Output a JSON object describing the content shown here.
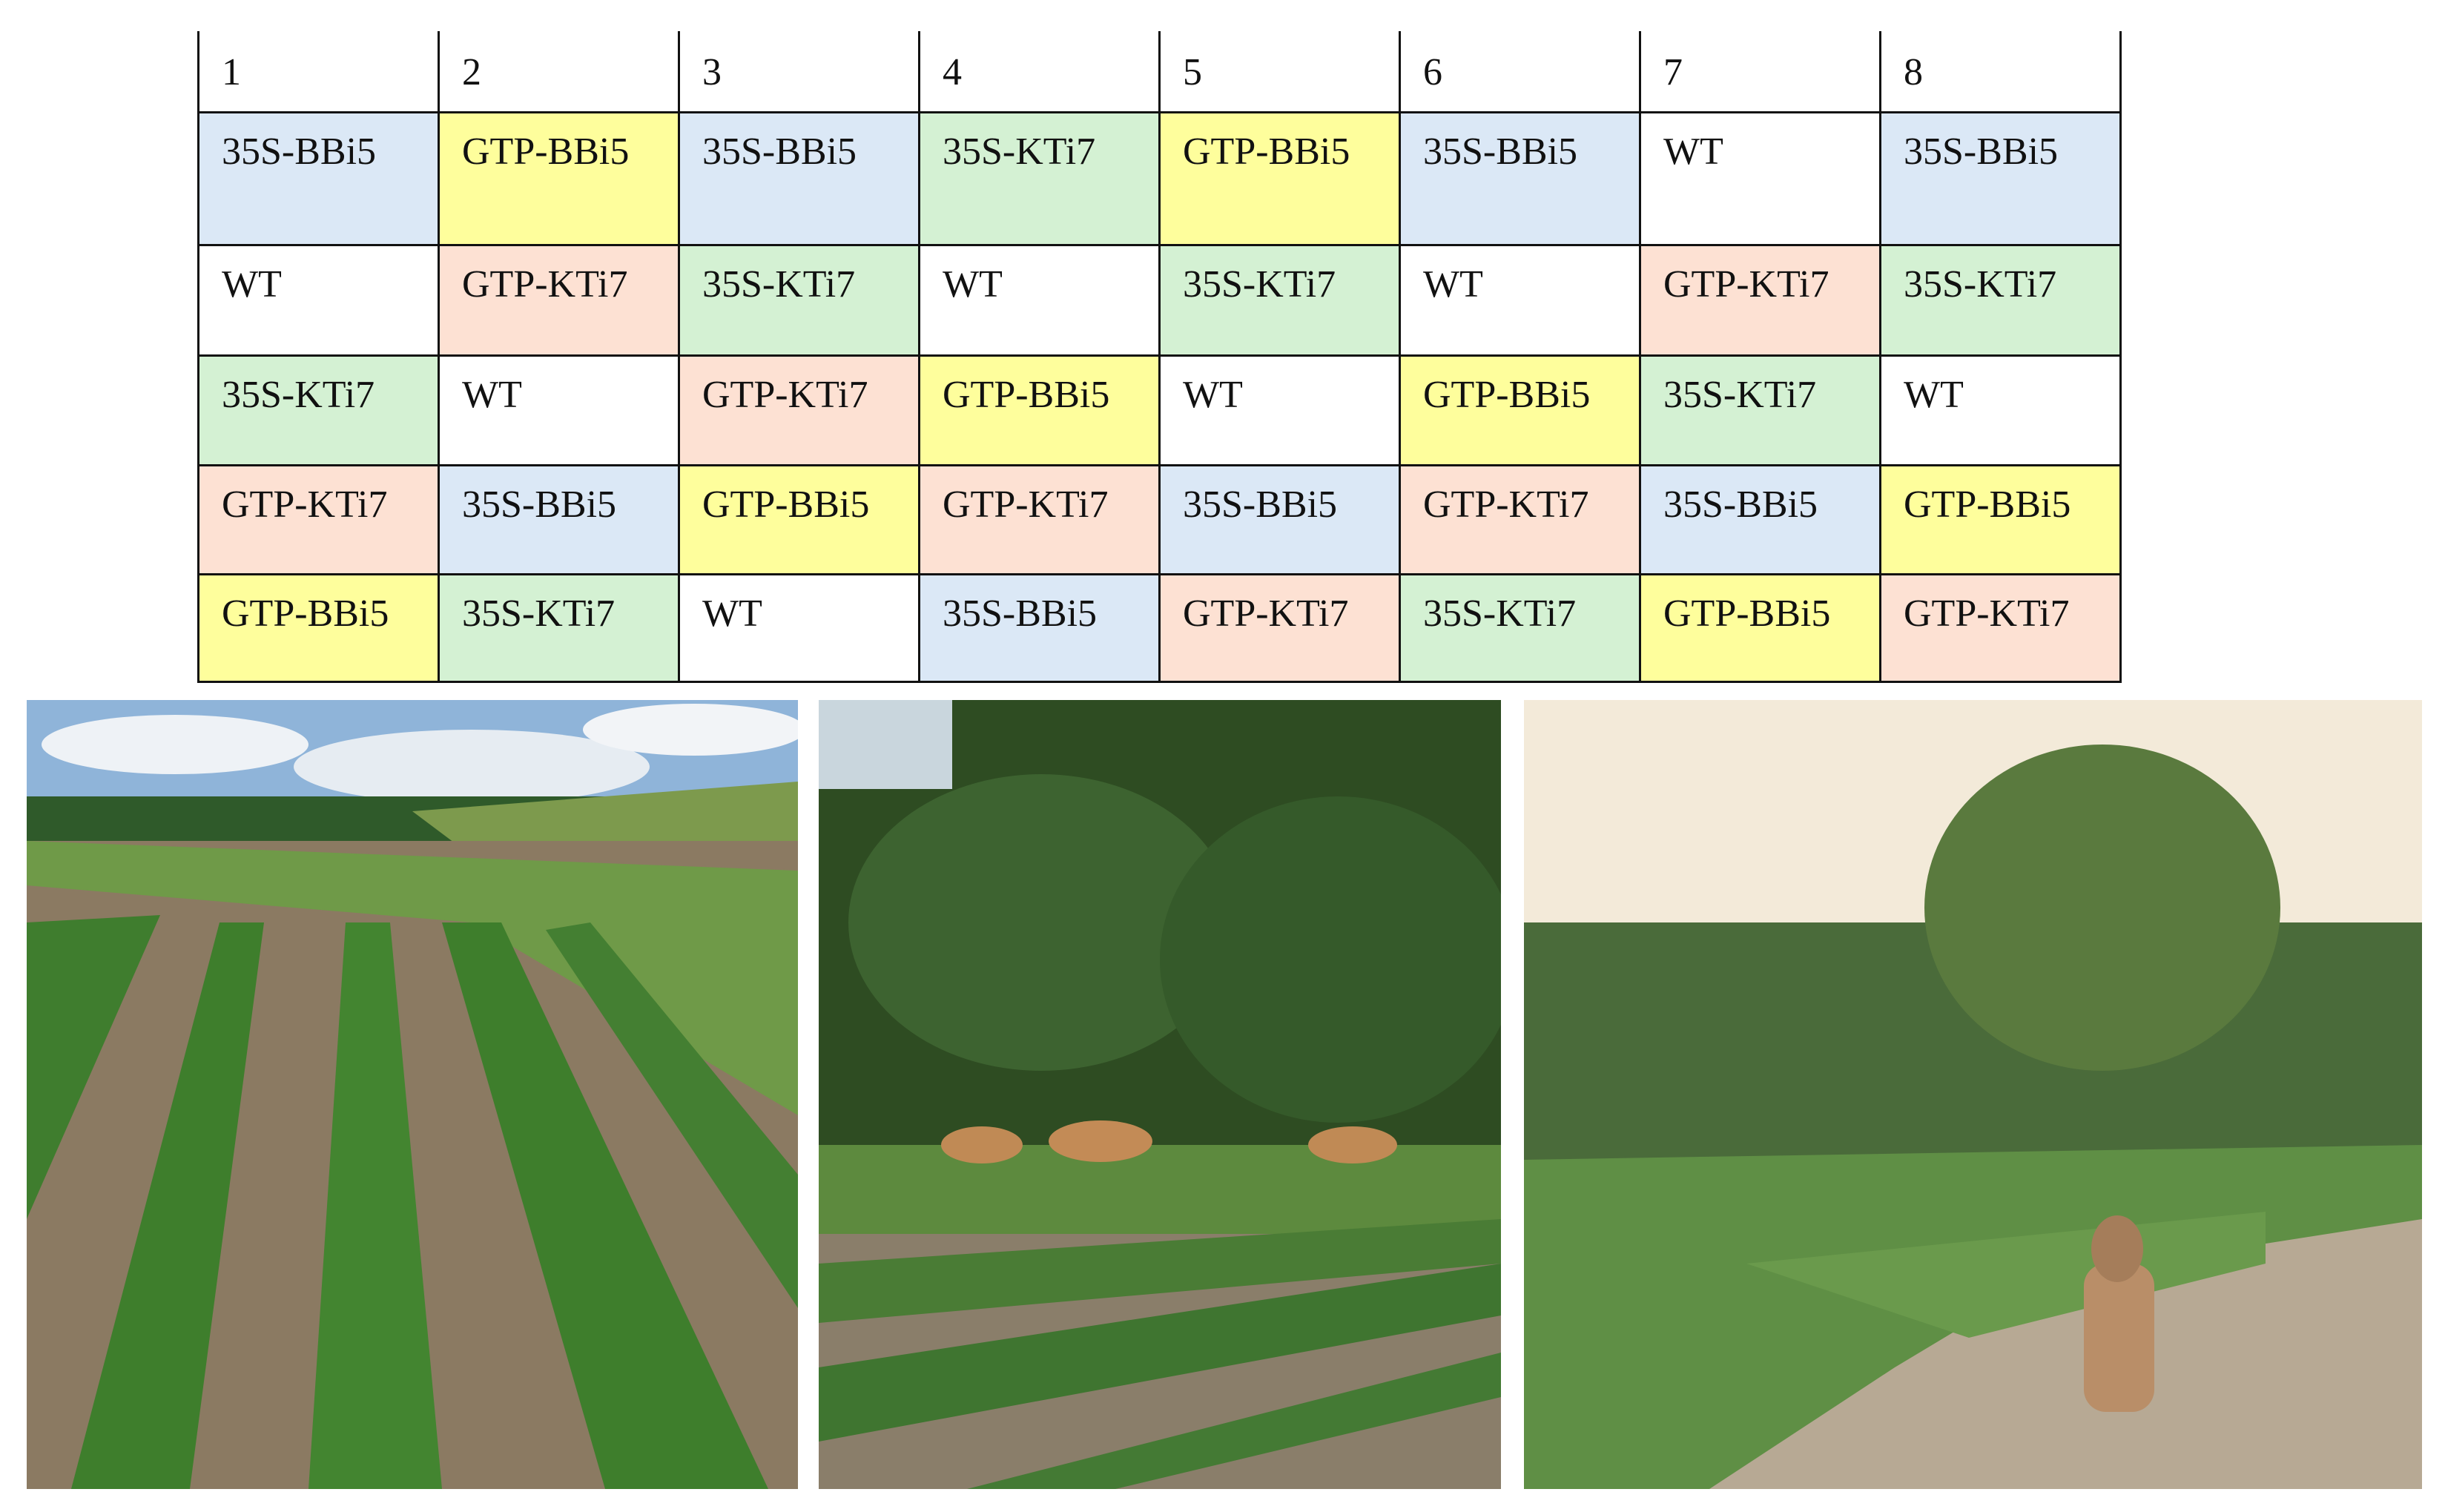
{
  "table": {
    "header": [
      "1",
      "2",
      "3",
      "4",
      "5",
      "6",
      "7",
      "8"
    ],
    "rows": [
      [
        {
          "text": "35S-BBi5",
          "color": "#dbe8f6"
        },
        {
          "text": "GTP-BBi5",
          "color": "#fefe9c"
        },
        {
          "text": "35S-BBi5",
          "color": "#dbe8f6"
        },
        {
          "text": "35S-KTi7",
          "color": "#d4f1d3"
        },
        {
          "text": "GTP-BBi5",
          "color": "#fefe9c"
        },
        {
          "text": "35S-BBi5",
          "color": "#dbe8f6"
        },
        {
          "text": "WT",
          "color": "#ffffff"
        },
        {
          "text": "35S-BBi5",
          "color": "#dbe8f6"
        }
      ],
      [
        {
          "text": "WT",
          "color": "#ffffff"
        },
        {
          "text": "GTP-KTi7",
          "color": "#fde1d3"
        },
        {
          "text": "35S-KTi7",
          "color": "#d4f1d3"
        },
        {
          "text": "WT",
          "color": "#ffffff"
        },
        {
          "text": "35S-KTi7",
          "color": "#d4f1d3"
        },
        {
          "text": "WT",
          "color": "#ffffff"
        },
        {
          "text": "GTP-KTi7",
          "color": "#fde1d3"
        },
        {
          "text": "35S-KTi7",
          "color": "#d4f1d3"
        }
      ],
      [
        {
          "text": "35S-KTi7",
          "color": "#d4f1d3"
        },
        {
          "text": "WT",
          "color": "#ffffff"
        },
        {
          "text": "GTP-KTi7",
          "color": "#fde1d3"
        },
        {
          "text": "GTP-BBi5",
          "color": "#fefe9c"
        },
        {
          "text": "WT",
          "color": "#ffffff"
        },
        {
          "text": "GTP-BBi5",
          "color": "#fefe9c"
        },
        {
          "text": "35S-KTi7",
          "color": "#d4f1d3"
        },
        {
          "text": "WT",
          "color": "#ffffff"
        }
      ],
      [
        {
          "text": "GTP-KTi7",
          "color": "#fde1d3"
        },
        {
          "text": "35S-BBi5",
          "color": "#dbe8f6"
        },
        {
          "text": "GTP-BBi5",
          "color": "#fefe9c"
        },
        {
          "text": "GTP-KTi7",
          "color": "#fde1d3"
        },
        {
          "text": "35S-BBi5",
          "color": "#dbe8f6"
        },
        {
          "text": "GTP-KTi7",
          "color": "#fde1d3"
        },
        {
          "text": "35S-BBi5",
          "color": "#dbe8f6"
        },
        {
          "text": "GTP-BBi5",
          "color": "#fefe9c"
        }
      ],
      [
        {
          "text": "GTP-BBi5",
          "color": "#fefe9c"
        },
        {
          "text": "35S-KTi7",
          "color": "#d4f1d3"
        },
        {
          "text": "WT",
          "color": "#ffffff"
        },
        {
          "text": "35S-BBi5",
          "color": "#dbe8f6"
        },
        {
          "text": "GTP-KTi7",
          "color": "#fde1d3"
        },
        {
          "text": "35S-KTi7",
          "color": "#d4f1d3"
        },
        {
          "text": "GTP-BBi5",
          "color": "#fefe9c"
        },
        {
          "text": "GTP-KTi7",
          "color": "#fde1d3"
        }
      ]
    ]
  }
}
